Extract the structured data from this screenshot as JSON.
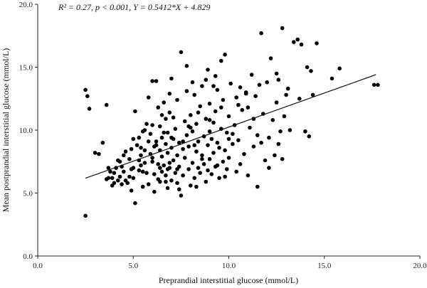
{
  "chart_data": {
    "type": "scatter",
    "xlabel": "Preprandial interstitial glucose (mmol/L)",
    "ylabel": "Mean postprandial interstitial glucose (mmol/L)",
    "xlim": [
      0,
      20
    ],
    "ylim": [
      0,
      20
    ],
    "xticks": [
      "0.0",
      "5.0",
      "10.0",
      "15.0",
      "20.0"
    ],
    "yticks": [
      "0.0",
      "5.0",
      "10.0",
      "15.0",
      "20.0"
    ],
    "annotation": "R² = 0.27, p < 0.001, Y = 0.5412*X + 4.829",
    "regression": {
      "slope": 0.5412,
      "intercept": 4.829,
      "x_range": [
        2.5,
        17.7
      ]
    },
    "points": [
      [
        2.5,
        13.2
      ],
      [
        2.6,
        12.7
      ],
      [
        2.7,
        11.7
      ],
      [
        2.5,
        3.2
      ],
      [
        3.0,
        8.2
      ],
      [
        3.2,
        8.1
      ],
      [
        3.4,
        9.0
      ],
      [
        3.6,
        12.0
      ],
      [
        3.6,
        6.1
      ],
      [
        3.7,
        6.2
      ],
      [
        3.7,
        7.0
      ],
      [
        3.8,
        6.7
      ],
      [
        3.9,
        5.6
      ],
      [
        4.0,
        5.8
      ],
      [
        4.0,
        6.6
      ],
      [
        4.1,
        7.0
      ],
      [
        4.2,
        6.0
      ],
      [
        4.2,
        7.6
      ],
      [
        4.3,
        7.5
      ],
      [
        4.3,
        6.3
      ],
      [
        4.4,
        5.7
      ],
      [
        4.5,
        8.0
      ],
      [
        4.5,
        6.7
      ],
      [
        4.6,
        6.0
      ],
      [
        4.7,
        5.8
      ],
      [
        4.8,
        7.7
      ],
      [
        4.8,
        6.3
      ],
      [
        4.9,
        8.5
      ],
      [
        4.9,
        5.2
      ],
      [
        5.0,
        6.2
      ],
      [
        5.0,
        9.3
      ],
      [
        5.1,
        11.5
      ],
      [
        5.1,
        4.2
      ],
      [
        5.2,
        8.8
      ],
      [
        5.3,
        9.4
      ],
      [
        5.3,
        6.8
      ],
      [
        5.4,
        7.2
      ],
      [
        5.4,
        8.0
      ],
      [
        5.5,
        9.9
      ],
      [
        5.5,
        6.7
      ],
      [
        5.6,
        8.4
      ],
      [
        5.6,
        7.4
      ],
      [
        5.7,
        10.5
      ],
      [
        5.7,
        6.6
      ],
      [
        5.8,
        12.6
      ],
      [
        5.8,
        5.7
      ],
      [
        5.9,
        9.7
      ],
      [
        5.9,
        8.1
      ],
      [
        6.0,
        13.9
      ],
      [
        6.0,
        7.5
      ],
      [
        6.0,
        10.4
      ],
      [
        6.1,
        8.7
      ],
      [
        6.1,
        6.5
      ],
      [
        6.1,
        5.1
      ],
      [
        6.2,
        13.9
      ],
      [
        6.2,
        9.1
      ],
      [
        6.3,
        7.3
      ],
      [
        6.3,
        11.8
      ],
      [
        6.3,
        6.1
      ],
      [
        6.4,
        8.4
      ],
      [
        6.4,
        5.9
      ],
      [
        6.4,
        10.3
      ],
      [
        6.5,
        7.9
      ],
      [
        6.5,
        9.4
      ],
      [
        6.5,
        6.7
      ],
      [
        6.6,
        12.2
      ],
      [
        6.6,
        7.2
      ],
      [
        6.7,
        8.9
      ],
      [
        6.7,
        6.4
      ],
      [
        6.7,
        10.9
      ],
      [
        6.8,
        5.4
      ],
      [
        6.8,
        8.2
      ],
      [
        6.8,
        9.8
      ],
      [
        6.9,
        7.0
      ],
      [
        6.9,
        11.4
      ],
      [
        7.0,
        8.6
      ],
      [
        7.0,
        6.0
      ],
      [
        7.0,
        14.1
      ],
      [
        7.1,
        9.3
      ],
      [
        7.1,
        7.6
      ],
      [
        7.2,
        6.6
      ],
      [
        7.2,
        10.1
      ],
      [
        7.3,
        8.0
      ],
      [
        7.3,
        12.4
      ],
      [
        7.3,
        5.8
      ],
      [
        7.4,
        9.0
      ],
      [
        7.4,
        7.1
      ],
      [
        7.5,
        16.2
      ],
      [
        7.5,
        4.8
      ],
      [
        7.6,
        8.5
      ],
      [
        7.6,
        6.4
      ],
      [
        7.7,
        10.7
      ],
      [
        7.7,
        7.8
      ],
      [
        7.8,
        9.6
      ],
      [
        7.8,
        13.1
      ],
      [
        7.9,
        6.9
      ],
      [
        7.9,
        8.7
      ],
      [
        8.0,
        11.2
      ],
      [
        8.0,
        5.6
      ],
      [
        8.1,
        7.4
      ],
      [
        8.1,
        9.9
      ],
      [
        8.2,
        12.8
      ],
      [
        8.2,
        6.2
      ],
      [
        8.3,
        8.3
      ],
      [
        8.3,
        10.5
      ],
      [
        8.4,
        7.0
      ],
      [
        8.4,
        9.1
      ],
      [
        8.5,
        11.9
      ],
      [
        8.5,
        6.6
      ],
      [
        8.6,
        13.5
      ],
      [
        8.6,
        8.0
      ],
      [
        8.7,
        9.5
      ],
      [
        8.7,
        7.3
      ],
      [
        8.8,
        10.9
      ],
      [
        8.8,
        5.9
      ],
      [
        8.9,
        8.8
      ],
      [
        8.9,
        14.8
      ],
      [
        9.0,
        7.7
      ],
      [
        9.0,
        12.1
      ],
      [
        9.1,
        9.3
      ],
      [
        9.1,
        6.5
      ],
      [
        9.2,
        10.6
      ],
      [
        9.2,
        8.2
      ],
      [
        9.3,
        11.5
      ],
      [
        9.3,
        7.1
      ],
      [
        9.4,
        13.2
      ],
      [
        9.4,
        9.0
      ],
      [
        9.5,
        6.2
      ],
      [
        9.5,
        8.6
      ],
      [
        9.6,
        15.5
      ],
      [
        9.6,
        10.1
      ],
      [
        9.7,
        7.5
      ],
      [
        9.7,
        12.4
      ],
      [
        9.8,
        16.0
      ],
      [
        9.8,
        8.4
      ],
      [
        9.9,
        9.8
      ],
      [
        9.9,
        6.9
      ],
      [
        10.0,
        11.1
      ],
      [
        10.0,
        7.8
      ],
      [
        10.1,
        13.7
      ],
      [
        10.2,
        8.9
      ],
      [
        10.3,
        10.4
      ],
      [
        10.4,
        6.7
      ],
      [
        10.5,
        12.0
      ],
      [
        10.5,
        9.2
      ],
      [
        10.6,
        7.3
      ],
      [
        10.7,
        11.6
      ],
      [
        10.8,
        8.1
      ],
      [
        10.9,
        13.0
      ],
      [
        11.0,
        6.4
      ],
      [
        11.1,
        10.2
      ],
      [
        11.2,
        14.4
      ],
      [
        11.3,
        8.7
      ],
      [
        11.4,
        12.7
      ],
      [
        11.5,
        9.6
      ],
      [
        11.5,
        5.5
      ],
      [
        11.7,
        17.7
      ],
      [
        11.8,
        11.3
      ],
      [
        11.9,
        7.6
      ],
      [
        12.0,
        13.8
      ],
      [
        12.1,
        9.4
      ],
      [
        12.2,
        15.7
      ],
      [
        12.3,
        10.8
      ],
      [
        12.4,
        8.0
      ],
      [
        12.5,
        12.2
      ],
      [
        12.6,
        14.0
      ],
      [
        12.7,
        9.9
      ],
      [
        12.8,
        18.1
      ],
      [
        12.8,
        7.7
      ],
      [
        12.9,
        11.1
      ],
      [
        13.1,
        13.3
      ],
      [
        13.2,
        10.0
      ],
      [
        13.4,
        17.0
      ],
      [
        13.6,
        17.2
      ],
      [
        13.7,
        12.5
      ],
      [
        13.8,
        16.8
      ],
      [
        14.0,
        9.9
      ],
      [
        14.1,
        15.0
      ],
      [
        14.2,
        9.5
      ],
      [
        14.3,
        14.7
      ],
      [
        14.4,
        12.8
      ],
      [
        14.6,
        16.9
      ],
      [
        15.4,
        14.1
      ],
      [
        15.8,
        14.9
      ],
      [
        17.6,
        13.6
      ],
      [
        17.8,
        13.6
      ],
      [
        6.6,
        9.8
      ],
      [
        7.1,
        11.0
      ],
      [
        7.9,
        10.3
      ],
      [
        8.4,
        11.4
      ],
      [
        9.0,
        10.8
      ],
      [
        10.2,
        9.7
      ],
      [
        5.6,
        10.0
      ],
      [
        6.9,
        12.9
      ],
      [
        8.1,
        13.8
      ],
      [
        9.3,
        14.3
      ],
      [
        10.6,
        13.4
      ],
      [
        6.2,
        8.8
      ],
      [
        6.9,
        7.4
      ],
      [
        7.6,
        9.1
      ],
      [
        8.6,
        7.7
      ],
      [
        9.4,
        7.2
      ],
      [
        5.3,
        7.6
      ],
      [
        4.6,
        8.3
      ],
      [
        5.8,
        9.1
      ],
      [
        6.4,
        7.0
      ],
      [
        7.3,
        6.9
      ],
      [
        8.2,
        8.8
      ],
      [
        8.9,
        6.8
      ],
      [
        9.8,
        6.3
      ],
      [
        11.7,
        9.0
      ],
      [
        12.1,
        7.0
      ],
      [
        13.0,
        12.8
      ],
      [
        11.0,
        11.8
      ],
      [
        10.4,
        12.6
      ],
      [
        9.6,
        11.8
      ],
      [
        6.7,
        5.9
      ],
      [
        7.4,
        5.3
      ],
      [
        8.3,
        5.5
      ],
      [
        5.5,
        5.5
      ],
      [
        4.4,
        7.1
      ],
      [
        3.9,
        6.2
      ],
      [
        5.0,
        7.0
      ],
      [
        6.0,
        7.8
      ],
      [
        7.0,
        9.4
      ],
      [
        8.0,
        10.2
      ],
      [
        9.0,
        9.9
      ],
      [
        10.0,
        9.3
      ],
      [
        11.3,
        10.9
      ],
      [
        12.6,
        8.9
      ],
      [
        7.8,
        15.1
      ],
      [
        8.8,
        14.0
      ],
      [
        9.2,
        13.5
      ],
      [
        12.5,
        14.5
      ],
      [
        10.9,
        12.9
      ],
      [
        11.6,
        13.6
      ],
      [
        6.5,
        11.2
      ],
      [
        5.4,
        8.6
      ],
      [
        4.9,
        6.9
      ],
      [
        6.8,
        6.9
      ]
    ]
  }
}
